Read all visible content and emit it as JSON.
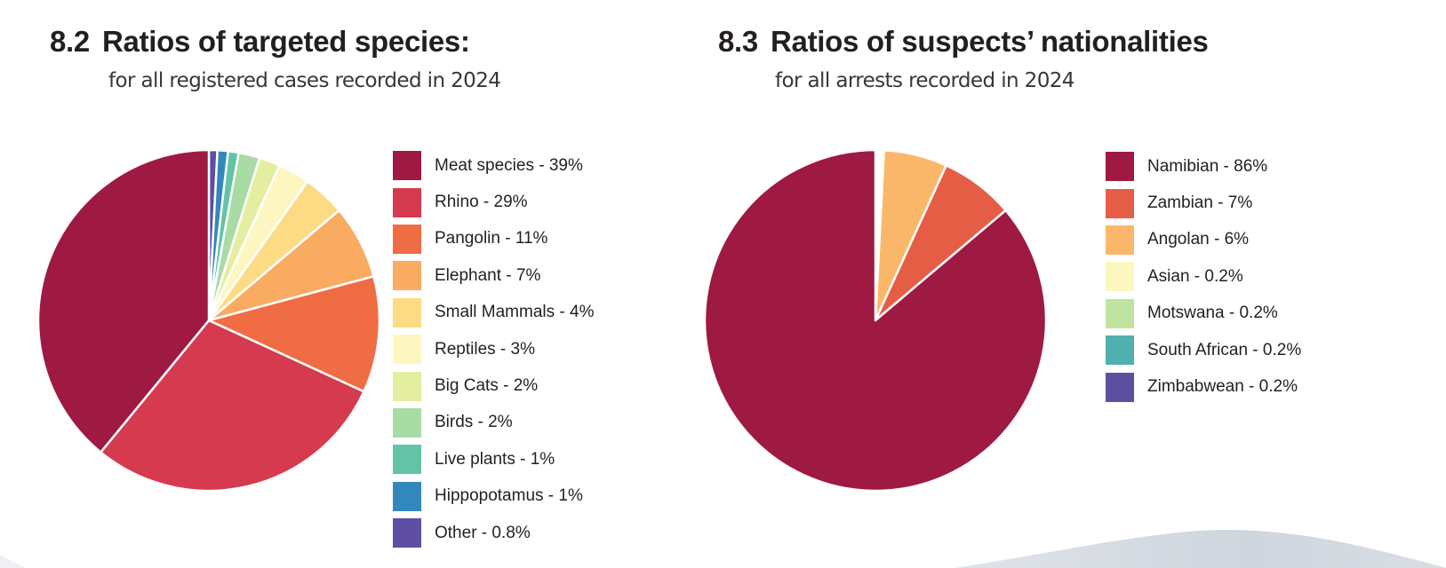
{
  "chart_data": [
    {
      "type": "pie",
      "section_number": "8.2",
      "title": "Ratios of targeted species:",
      "subtitle": "for all registered cases recorded in 2024",
      "start_angle_deg": 0,
      "direction": "clockwise",
      "slice_order": "legend order reversed (smallest first from 12 o'clock)",
      "legend_position": "right",
      "slices": [
        {
          "label": "Meat species",
          "value": 39,
          "display": "Meat species - 39%",
          "color": "#9e1a42"
        },
        {
          "label": "Rhino",
          "value": 29,
          "display": "Rhino - 29%",
          "color": "#d53a4f"
        },
        {
          "label": "Pangolin",
          "value": 11,
          "display": "Pangolin - 11%",
          "color": "#f06c44"
        },
        {
          "label": "Elephant",
          "value": 7,
          "display": "Elephant - 7%",
          "color": "#f9ab62"
        },
        {
          "label": "Small Mammals",
          "value": 4,
          "display": "Small Mammals - 4%",
          "color": "#fddb85"
        },
        {
          "label": "Reptiles",
          "value": 3,
          "display": "Reptiles - 3%",
          "color": "#fdf6c0"
        },
        {
          "label": "Big Cats",
          "value": 2,
          "display": "Big Cats - 2%",
          "color": "#e4eea0"
        },
        {
          "label": "Birds",
          "value": 2,
          "display": "Birds - 2%",
          "color": "#a9dba4"
        },
        {
          "label": "Live plants",
          "value": 1,
          "display": "Live plants - 1%",
          "color": "#64c2a6"
        },
        {
          "label": "Hippopotamus",
          "value": 1,
          "display": "Hippopotamus - 1%",
          "color": "#3288bd"
        },
        {
          "label": "Other",
          "value": 0.8,
          "display": "Other - 0.8%",
          "color": "#5e4fa2"
        }
      ]
    },
    {
      "type": "pie",
      "section_number": "8.3",
      "title": "Ratios of suspects’ nationalities",
      "subtitle": "for all arrests recorded in 2024",
      "start_angle_deg": 0,
      "direction": "clockwise",
      "slice_order": "legend order reversed (smallest first from 12 o'clock)",
      "legend_position": "right",
      "slices": [
        {
          "label": "Namibian",
          "value": 86,
          "display": "Namibian - 86%",
          "color": "#9e1a42"
        },
        {
          "label": "Zambian",
          "value": 7,
          "display": "Zambian - 7%",
          "color": "#e65d46"
        },
        {
          "label": "Angolan",
          "value": 6,
          "display": "Angolan - 6%",
          "color": "#fbb769"
        },
        {
          "label": "Asian",
          "value": 0.2,
          "display": "Asian - 0.2%",
          "color": "#fcf6bf"
        },
        {
          "label": "Motswana",
          "value": 0.2,
          "display": "Motswana - 0.2%",
          "color": "#bfe3a0"
        },
        {
          "label": "South African",
          "value": 0.2,
          "display": "South African - 0.2%",
          "color": "#4fb0ae"
        },
        {
          "label": "Zimbabwean",
          "value": 0.2,
          "display": "Zimbabwean - 0.2%",
          "color": "#5e4fa2"
        }
      ]
    }
  ],
  "page": {
    "background": "#ffffff",
    "footer_wave_color": "#d3d9e0"
  }
}
